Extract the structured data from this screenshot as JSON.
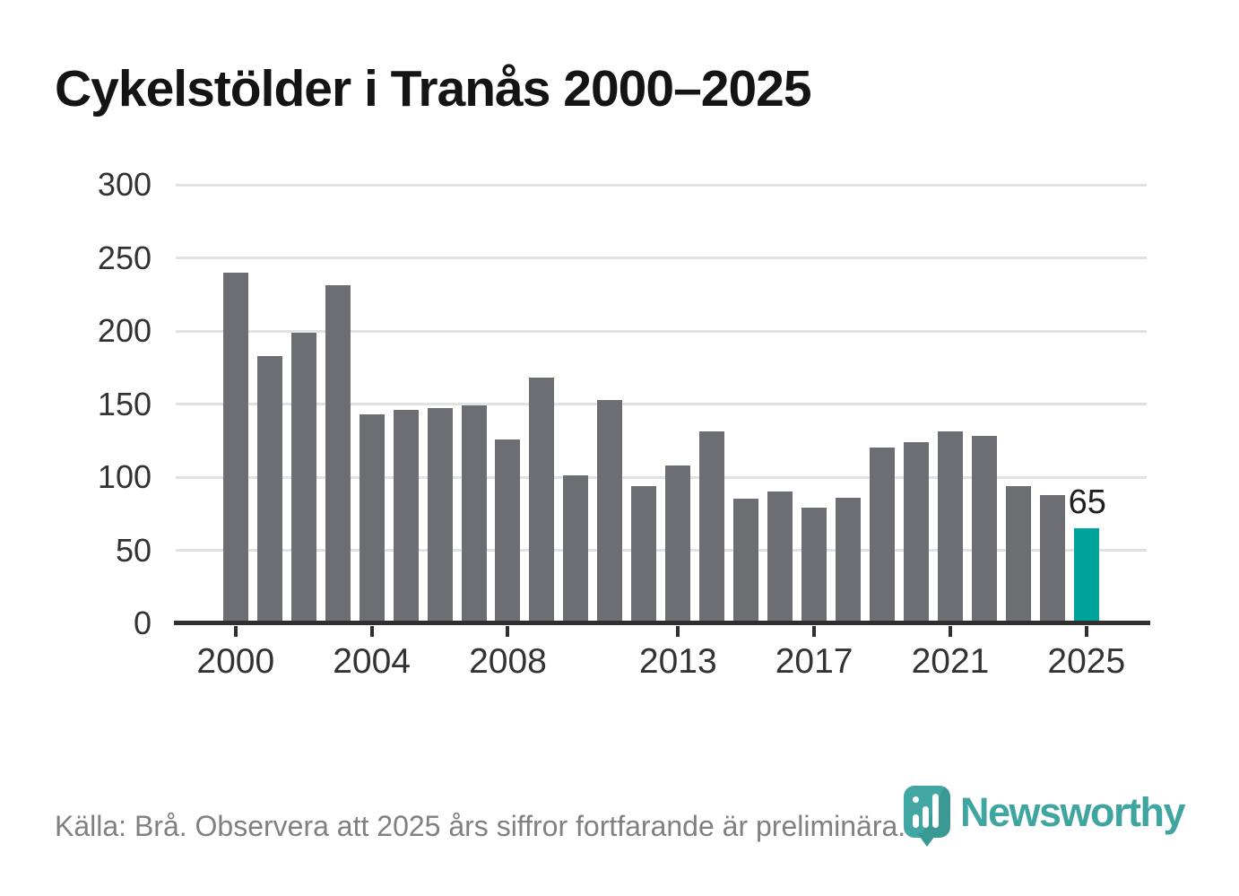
{
  "title": "Cykelstölder i Tranås 2000–2025",
  "source_note": "Källa: Brå. Observera att 2025 års siffror fortfarande är preliminära.",
  "branding": {
    "logo_text": "Newsworthy",
    "logo_color": "#3ea5a1"
  },
  "colors": {
    "bar": "#6d6d74",
    "highlight": "#00a39c",
    "gridline": "#e2e2e2",
    "axis": "#2f2f2f",
    "tick_label": "#333333",
    "title": "#141414",
    "source_text": "#7f7f84"
  },
  "chart_data": {
    "type": "bar",
    "title": "Cykelstölder i Tranås 2000–2025",
    "xlabel": "",
    "ylabel": "",
    "categories": [
      2000,
      2001,
      2002,
      2003,
      2004,
      2005,
      2006,
      2007,
      2008,
      2009,
      2010,
      2011,
      2012,
      2013,
      2014,
      2015,
      2016,
      2017,
      2018,
      2019,
      2020,
      2021,
      2022,
      2023,
      2024,
      2025
    ],
    "values": [
      240,
      183,
      199,
      231,
      143,
      146,
      147,
      149,
      126,
      168,
      101,
      153,
      94,
      108,
      131,
      85,
      90,
      79,
      86,
      120,
      124,
      131,
      128,
      94,
      88,
      65
    ],
    "ylim": [
      0,
      300
    ],
    "yticks": [
      0,
      50,
      100,
      150,
      200,
      250,
      300
    ],
    "xtick_years": [
      2000,
      2004,
      2008,
      2013,
      2017,
      2021,
      2025
    ],
    "xtick_labels": [
      "2000",
      "2004",
      "2008",
      "2013",
      "2017",
      "2021",
      "2025"
    ],
    "grid": "horizontal",
    "legend": "none",
    "highlight_year": 2025,
    "data_label": {
      "year": 2025,
      "text": "65"
    }
  }
}
